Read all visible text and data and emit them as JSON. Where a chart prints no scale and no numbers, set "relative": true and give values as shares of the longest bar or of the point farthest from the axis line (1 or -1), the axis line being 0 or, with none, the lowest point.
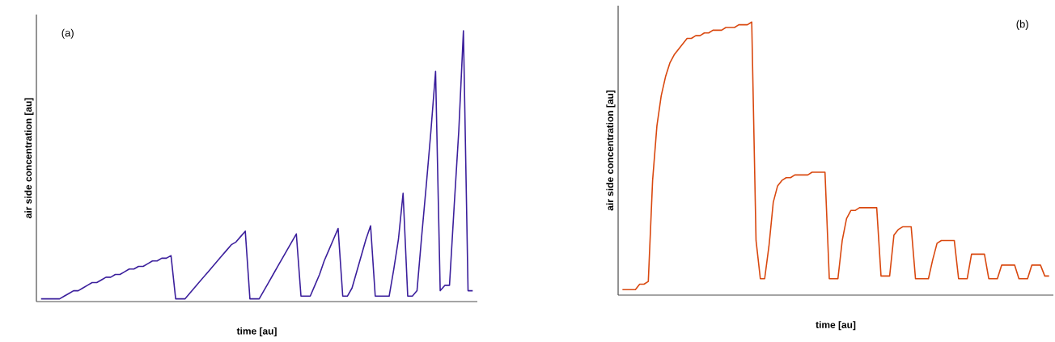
{
  "chart_data": [
    {
      "type": "line",
      "relative": true,
      "color": "#3b1f9c",
      "xlabel": "time [au]",
      "ylabel": "air side concentration [au]",
      "annotations": [
        "(a)"
      ],
      "categories": [
        null,
        null,
        null,
        null,
        null,
        null,
        null,
        null,
        null,
        null,
        null,
        null,
        null,
        null,
        null,
        null,
        null,
        null,
        null,
        null,
        null,
        null,
        null,
        null,
        null,
        null,
        null,
        null,
        null,
        null,
        null,
        null,
        null,
        null,
        null,
        null,
        null,
        null,
        null,
        null,
        null,
        null,
        null,
        null,
        null,
        null,
        null,
        null,
        null,
        null,
        null,
        null,
        null,
        null,
        null,
        null,
        null,
        null,
        null,
        null,
        null,
        null,
        null,
        null,
        null,
        null,
        null,
        null,
        null,
        null,
        null,
        null,
        null,
        null,
        null,
        null,
        null,
        null,
        null,
        null,
        null,
        null,
        null,
        null,
        null,
        null,
        null,
        null,
        null,
        null,
        null,
        null,
        null,
        null
      ],
      "values": [
        0.01,
        0.01,
        0.01,
        0.01,
        0.01,
        0.02,
        0.03,
        0.04,
        0.04,
        0.05,
        0.06,
        0.07,
        0.07,
        0.08,
        0.09,
        0.09,
        0.1,
        0.1,
        0.11,
        0.12,
        0.12,
        0.13,
        0.13,
        0.14,
        0.15,
        0.15,
        0.16,
        0.16,
        0.17,
        0.01,
        0.01,
        0.01,
        0.03,
        0.05,
        0.07,
        0.09,
        0.11,
        0.13,
        0.15,
        0.17,
        0.19,
        0.21,
        0.22,
        0.24,
        0.26,
        0.01,
        0.01,
        0.01,
        0.04,
        0.07,
        0.1,
        0.13,
        0.16,
        0.19,
        0.22,
        0.25,
        0.02,
        0.02,
        0.02,
        0.06,
        0.1,
        0.15,
        0.19,
        0.23,
        0.27,
        0.02,
        0.02,
        0.05,
        0.11,
        0.17,
        0.23,
        0.28,
        0.02,
        0.02,
        0.02,
        0.02,
        0.12,
        0.23,
        0.4,
        0.02,
        0.02,
        0.04,
        0.24,
        0.43,
        0.63,
        0.85,
        0.04,
        0.06,
        0.06,
        0.35,
        0.63,
        1.0,
        0.04,
        0.04
      ]
    },
    {
      "type": "line",
      "relative": true,
      "color": "#d9480f",
      "xlabel": "time [au]",
      "ylabel": "air side concentration [au]",
      "annotations": [
        "(b)"
      ],
      "categories": [
        null,
        null,
        null,
        null,
        null,
        null,
        null,
        null,
        null,
        null,
        null,
        null,
        null,
        null,
        null,
        null,
        null,
        null,
        null,
        null,
        null,
        null,
        null,
        null,
        null,
        null,
        null,
        null,
        null,
        null,
        null,
        null,
        null,
        null,
        null,
        null,
        null,
        null,
        null,
        null,
        null,
        null,
        null,
        null,
        null,
        null,
        null,
        null,
        null,
        null,
        null,
        null,
        null,
        null,
        null,
        null,
        null,
        null,
        null,
        null,
        null,
        null,
        null,
        null,
        null,
        null,
        null,
        null,
        null,
        null,
        null,
        null,
        null,
        null,
        null,
        null,
        null,
        null,
        null,
        null,
        null,
        null,
        null,
        null,
        null,
        null,
        null,
        null,
        null,
        null,
        null,
        null,
        null,
        null,
        null,
        null,
        null,
        null,
        null,
        null
      ],
      "values": [
        0.02,
        0.02,
        0.02,
        0.02,
        0.04,
        0.04,
        0.05,
        0.42,
        0.62,
        0.73,
        0.8,
        0.85,
        0.88,
        0.9,
        0.92,
        0.94,
        0.94,
        0.95,
        0.95,
        0.96,
        0.96,
        0.97,
        0.97,
        0.97,
        0.98,
        0.98,
        0.98,
        0.99,
        0.99,
        0.99,
        1.0,
        0.2,
        0.06,
        0.06,
        0.18,
        0.34,
        0.4,
        0.42,
        0.43,
        0.43,
        0.44,
        0.44,
        0.44,
        0.44,
        0.45,
        0.45,
        0.45,
        0.45,
        0.06,
        0.06,
        0.06,
        0.2,
        0.28,
        0.31,
        0.31,
        0.32,
        0.32,
        0.32,
        0.32,
        0.32,
        0.07,
        0.07,
        0.07,
        0.22,
        0.24,
        0.25,
        0.25,
        0.25,
        0.06,
        0.06,
        0.06,
        0.06,
        0.13,
        0.19,
        0.2,
        0.2,
        0.2,
        0.2,
        0.06,
        0.06,
        0.06,
        0.15,
        0.15,
        0.15,
        0.15,
        0.06,
        0.06,
        0.06,
        0.11,
        0.11,
        0.11,
        0.11,
        0.06,
        0.06,
        0.06,
        0.11,
        0.11,
        0.11,
        0.07,
        0.07
      ]
    }
  ]
}
